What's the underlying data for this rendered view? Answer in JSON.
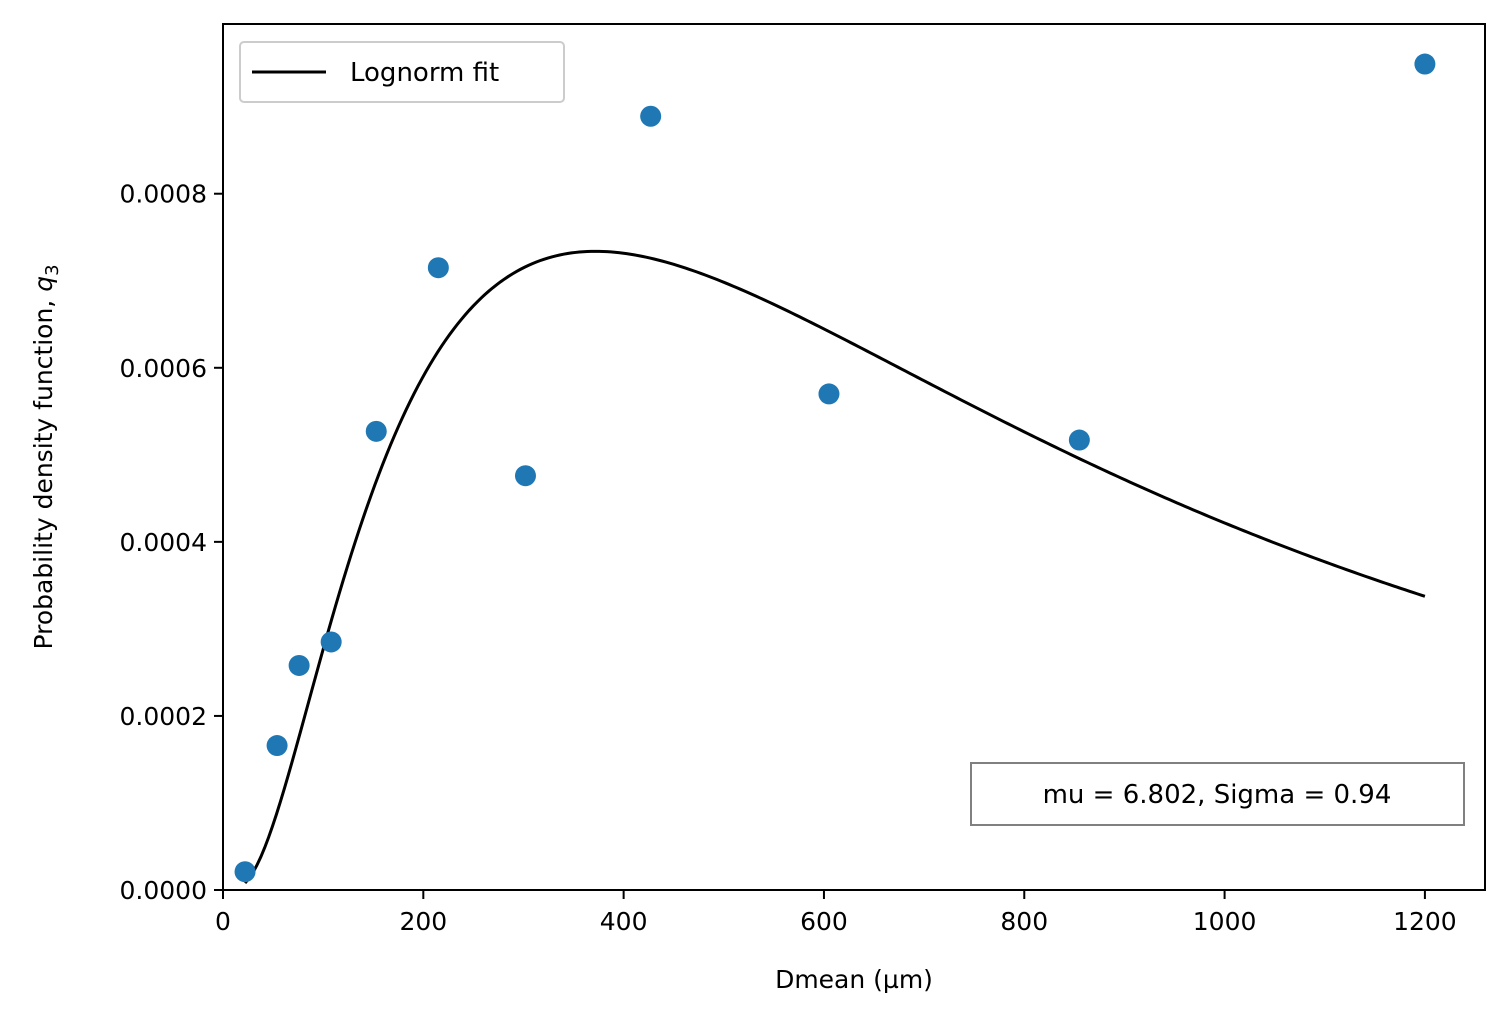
{
  "chart_data": {
    "type": "scatter",
    "title": "",
    "xlabel": "Dmean (µm)",
    "ylabel": "Probability density function, ",
    "ylabel_math": "q",
    "ylabel_sub": "3",
    "xlim": [
      0,
      1260
    ],
    "ylim": [
      0,
      0.000995
    ],
    "xticks": [
      {
        "value": 0,
        "label": "0"
      },
      {
        "value": 200,
        "label": "200"
      },
      {
        "value": 400,
        "label": "400"
      },
      {
        "value": 600,
        "label": "600"
      },
      {
        "value": 800,
        "label": "800"
      },
      {
        "value": 1000,
        "label": "1000"
      },
      {
        "value": 1200,
        "label": "1200"
      }
    ],
    "yticks": [
      {
        "value": 0,
        "label": "0.0000"
      },
      {
        "value": 0.0002,
        "label": "0.0002"
      },
      {
        "value": 0.0004,
        "label": "0.0004"
      },
      {
        "value": 0.0006,
        "label": "0.0006"
      },
      {
        "value": 0.0008,
        "label": "0.0008"
      }
    ],
    "grid": false,
    "legend_position": "top-left",
    "scatter": {
      "color": "#1f77b4",
      "points": [
        {
          "x": 22,
          "y": 2.1e-05
        },
        {
          "x": 54,
          "y": 0.000166
        },
        {
          "x": 76,
          "y": 0.000258
        },
        {
          "x": 108,
          "y": 0.000285
        },
        {
          "x": 153,
          "y": 0.000527
        },
        {
          "x": 215,
          "y": 0.000715
        },
        {
          "x": 302,
          "y": 0.000476
        },
        {
          "x": 427,
          "y": 0.000889
        },
        {
          "x": 605,
          "y": 0.00057
        },
        {
          "x": 855,
          "y": 0.000517
        },
        {
          "x": 1200,
          "y": 0.000949
        }
      ]
    },
    "fit": {
      "name": "Lognorm fit",
      "color": "#000000",
      "distribution": "lognormal",
      "mu": 6.802,
      "sigma": 0.94,
      "x_start": 22,
      "x_end": 1200
    },
    "annotation": "mu = 6.802, Sigma = 0.94"
  }
}
